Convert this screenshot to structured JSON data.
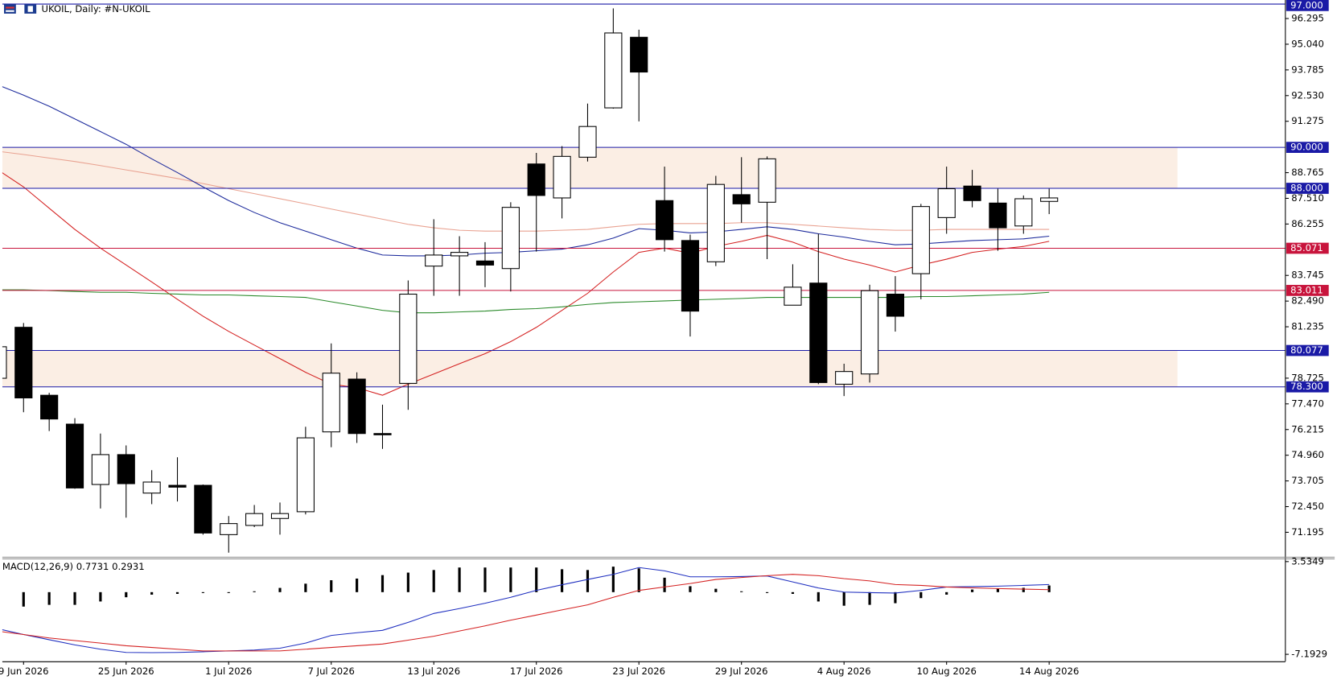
{
  "chart_data": [
    {
      "type": "candlestick",
      "title": "UKOIL, Daily:  #N-UKOIL",
      "categories": [
        null,
        "9 Jun 2026",
        null,
        null,
        null,
        "25 Jun 2026",
        null,
        null,
        null,
        "1 Jul 2026",
        null,
        null,
        null,
        "7 Jul 2026",
        null,
        null,
        null,
        "13 Jul 2026",
        null,
        null,
        null,
        "17 Jul 2026",
        null,
        null,
        null,
        "23 Jul 2026",
        null,
        null,
        null,
        "29 Jul 2026",
        null,
        null,
        null,
        "4 Aug 2026",
        null,
        null,
        null,
        "10 Aug 2026",
        null,
        null,
        null,
        "14 Aug 2026"
      ],
      "open": [
        78.72,
        81.21,
        77.89,
        76.48,
        73.53,
        74.99,
        73.11,
        73.49,
        73.49,
        71.08,
        71.53,
        71.87,
        72.2,
        76.1,
        78.68,
        76.02,
        78.47,
        84.2,
        84.7,
        84.45,
        84.08,
        89.19,
        87.53,
        89.52,
        91.93,
        95.38,
        87.4,
        85.45,
        84.41,
        87.69,
        87.32,
        82.29,
        83.37,
        78.43,
        78.93,
        82.83,
        83.83,
        86.57,
        88.11,
        87.28,
        86.16,
        87.36
      ],
      "high": [
        80.6,
        81.42,
        78.01,
        76.77,
        76.02,
        75.44,
        74.23,
        74.86,
        73.53,
        71.99,
        72.53,
        72.65,
        76.35,
        80.42,
        79.01,
        77.43,
        83.5,
        86.49,
        85.66,
        85.37,
        87.32,
        89.73,
        90.06,
        92.14,
        96.79,
        95.75,
        89.06,
        85.74,
        88.61,
        89.52,
        89.56,
        84.29,
        85.78,
        79.43,
        83.29,
        83.71,
        87.24,
        89.06,
        88.9,
        87.98,
        87.65,
        87.98
      ],
      "low": [
        78.5,
        77.06,
        76.14,
        73.32,
        72.36,
        71.91,
        72.57,
        72.7,
        71.08,
        70.2,
        71.45,
        71.08,
        72.07,
        75.35,
        75.56,
        75.27,
        77.18,
        82.75,
        82.75,
        83.17,
        82.96,
        84.91,
        86.53,
        89.31,
        91.89,
        91.27,
        84.91,
        80.76,
        84.2,
        86.32,
        84.54,
        82.29,
        78.43,
        77.85,
        78.51,
        81.0,
        82.58,
        85.78,
        87.07,
        84.95,
        85.78,
        86.74
      ],
      "close": [
        80.26,
        77.76,
        76.73,
        73.36,
        74.99,
        73.57,
        73.65,
        73.4,
        71.16,
        71.62,
        72.11,
        72.11,
        75.81,
        78.97,
        76.02,
        75.98,
        82.83,
        84.74,
        84.87,
        84.25,
        87.07,
        87.65,
        89.56,
        91.02,
        95.59,
        93.68,
        85.49,
        82.0,
        88.19,
        87.24,
        89.44,
        83.17,
        78.51,
        79.05,
        83.0,
        81.75,
        87.11,
        87.98,
        87.4,
        86.07,
        87.49,
        87.53
      ],
      "ylim": [
        70.0,
        97.2
      ],
      "yticks": [
        96.295,
        {
          "value": 95.04,
          "label": "95.040"
        },
        93.785,
        {
          "value": 92.53,
          "label": "92.530"
        },
        91.275,
        88.765,
        {
          "value": 87.51,
          "label": "87.510"
        },
        86.255,
        83.745,
        {
          "value": 82.49,
          "label": "82.490"
        },
        81.235,
        78.725,
        {
          "value": 77.47,
          "label": "77.470"
        },
        76.215,
        {
          "value": 74.96,
          "label": "74.960"
        },
        73.705,
        {
          "value": 72.45,
          "label": "72.450"
        },
        71.195
      ],
      "levels": [
        {
          "value": 97,
          "label": "97.000",
          "color": "#1a1aa6"
        },
        {
          "value": 90,
          "label": "90.000",
          "color": "#1a1aa6"
        },
        {
          "value": 88,
          "label": "88.000",
          "color": "#1a1aa6"
        },
        {
          "value": 85.071,
          "label": "85.071",
          "color": "#c8143c"
        },
        {
          "value": 83.011,
          "label": "83.011",
          "color": "#c8143c"
        },
        {
          "value": 80.077,
          "label": "80.077",
          "color": "#1a1aa6"
        },
        {
          "value": 78.3,
          "label": "78.300",
          "color": "#1a1aa6"
        }
      ],
      "zones": [
        {
          "from": 88,
          "to": 90,
          "color": "#fbeee4"
        },
        {
          "from": 78.3,
          "to": 80.077,
          "color": "#fbeee4"
        }
      ],
      "series": [
        {
          "color": "#e9a291",
          "values": [
            89.81,
            89.65,
            89.48,
            89.31,
            89.11,
            88.9,
            88.69,
            88.48,
            88.23,
            87.98,
            87.74,
            87.49,
            87.24,
            86.99,
            86.74,
            86.49,
            86.24,
            86.07,
            85.95,
            85.91,
            85.91,
            85.91,
            85.95,
            85.99,
            86.12,
            86.24,
            86.28,
            86.28,
            86.28,
            86.32,
            86.32,
            86.24,
            86.16,
            86.07,
            85.99,
            85.95,
            85.95,
            85.99,
            85.99,
            85.99,
            85.99,
            85.99
          ]
        },
        {
          "color": "#1c2a9c",
          "values": [
            93.05,
            92.55,
            92.01,
            91.39,
            90.77,
            90.15,
            89.44,
            88.77,
            88.07,
            87.4,
            86.82,
            86.32,
            85.91,
            85.49,
            85.08,
            84.74,
            84.7,
            84.7,
            84.74,
            84.83,
            84.87,
            84.95,
            85.03,
            85.24,
            85.57,
            86.03,
            85.95,
            85.82,
            85.87,
            85.99,
            86.12,
            85.99,
            85.78,
            85.62,
            85.41,
            85.24,
            85.28,
            85.37,
            85.45,
            85.49,
            85.53,
            85.66
          ]
        },
        {
          "color": "#d42020",
          "values": [
            88.9,
            88.07,
            87.03,
            85.99,
            85.08,
            84.25,
            83.42,
            82.58,
            81.75,
            81.01,
            80.34,
            79.68,
            79.01,
            78.43,
            78.26,
            77.89,
            78.43,
            78.93,
            79.43,
            79.92,
            80.51,
            81.21,
            82.04,
            82.87,
            83.91,
            84.87,
            85.08,
            84.83,
            85.16,
            85.41,
            85.7,
            85.37,
            84.91,
            84.54,
            84.25,
            83.91,
            84.25,
            84.54,
            84.87,
            85.03,
            85.16,
            85.41
          ]
        },
        {
          "color": "#2a8a2a",
          "values": [
            83.04,
            83.04,
            83.0,
            82.96,
            82.92,
            82.92,
            82.87,
            82.83,
            82.79,
            82.79,
            82.75,
            82.71,
            82.67,
            82.46,
            82.25,
            82.04,
            81.92,
            81.92,
            81.96,
            82.0,
            82.08,
            82.12,
            82.21,
            82.33,
            82.42,
            82.46,
            82.5,
            82.54,
            82.58,
            82.62,
            82.67,
            82.67,
            82.67,
            82.67,
            82.67,
            82.67,
            82.71,
            82.71,
            82.75,
            82.79,
            82.83,
            82.92
          ]
        }
      ]
    },
    {
      "type": "macd",
      "title": "MACD(12,26,9) 0.7731 0.2931",
      "ylim": [
        -8.0,
        3.8
      ],
      "yticks": [
        3.5349,
        -7.1929
      ],
      "histogram": {
        "color": "#000000",
        "values": [
          null,
          -1.67,
          -1.47,
          -1.47,
          -1.08,
          -0.59,
          -0.29,
          -0.2,
          -0.1,
          -0.1,
          0.1,
          0.49,
          0.98,
          1.38,
          1.57,
          1.97,
          2.26,
          2.56,
          2.85,
          2.85,
          2.85,
          2.85,
          2.65,
          2.56,
          2.95,
          2.75,
          1.67,
          0.69,
          0.39,
          0.1,
          -0.1,
          -0.2,
          -1.08,
          -1.57,
          -1.47,
          -1.28,
          -0.69,
          -0.29,
          0.3,
          0.4,
          0.5,
          0.77
        ]
      },
      "series": [
        {
          "color": "#1f2fc0",
          "values": [
            -4.23,
            -4.9,
            -5.5,
            -6.1,
            -6.6,
            -6.98,
            -7.0,
            -6.98,
            -6.9,
            -6.8,
            -6.7,
            -6.49,
            -5.9,
            -5.01,
            -4.7,
            -4.42,
            -3.5,
            -2.46,
            -1.9,
            -1.28,
            -0.6,
            0.2,
            0.85,
            1.47,
            2.06,
            2.85,
            2.46,
            1.77,
            1.77,
            1.8,
            1.87,
            1.18,
            0.49,
            0.0,
            -0.05,
            -0.1,
            0.2,
            0.59,
            0.64,
            0.69,
            0.78,
            0.88
          ]
        },
        {
          "color": "#d42020",
          "values": [
            -4.52,
            -4.9,
            -5.3,
            -5.6,
            -5.9,
            -6.2,
            -6.4,
            -6.6,
            -6.8,
            -6.8,
            -6.8,
            -6.8,
            -6.6,
            -6.4,
            -6.2,
            -6.0,
            -5.55,
            -5.1,
            -4.5,
            -3.9,
            -3.24,
            -2.65,
            -2.05,
            -1.47,
            -0.6,
            0.2,
            0.6,
            1.0,
            1.47,
            1.7,
            1.9,
            2.06,
            1.9,
            1.57,
            1.3,
            0.88,
            0.78,
            0.59,
            0.5,
            0.42,
            0.35,
            0.29
          ]
        }
      ]
    }
  ]
}
